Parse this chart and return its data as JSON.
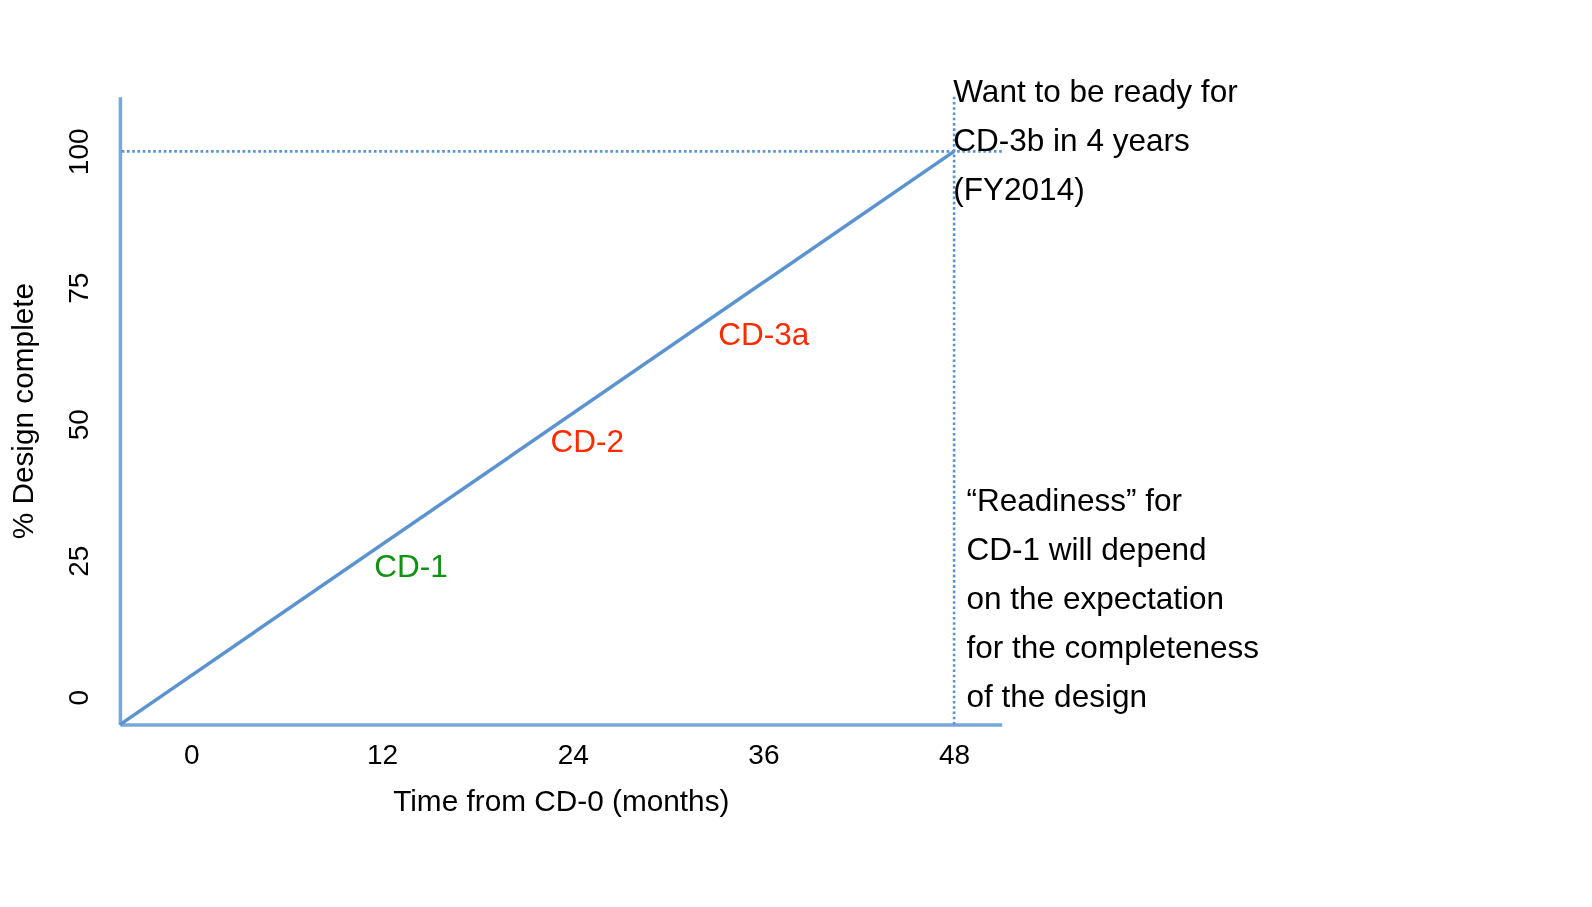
{
  "chart_data": {
    "type": "line",
    "xlabel": "Time from CD-0 (months)",
    "ylabel": "% Design complete",
    "x": [
      -4.5,
      48
    ],
    "series": [
      {
        "color": "#5b93d0",
        "values": [
          -5,
          100
        ]
      }
    ],
    "xlim": [
      -4.5,
      51
    ],
    "ylim": [
      -5,
      110
    ],
    "xticks": [
      0,
      12,
      24,
      36,
      48
    ],
    "yticks": [
      0,
      25,
      50,
      75,
      100
    ],
    "grid": false,
    "marker": "none",
    "line_style": "solid",
    "ref_lines": [
      {
        "axis": "x",
        "value": 48,
        "label": null,
        "color": "#5b93d0",
        "line_style": "dotted"
      },
      {
        "axis": "y",
        "value": 100,
        "label": null,
        "color": "#5b93d0",
        "line_style": "dotted"
      }
    ],
    "annotations": [
      "CD-3a",
      "CD-2",
      "CD-1",
      "Want to be ready for\nCD-3b in 4 years\n(FY2014)",
      "“Readiness” for\nCD-1 will depend\non the expectation\nfor the completeness\nof the design"
    ]
  }
}
